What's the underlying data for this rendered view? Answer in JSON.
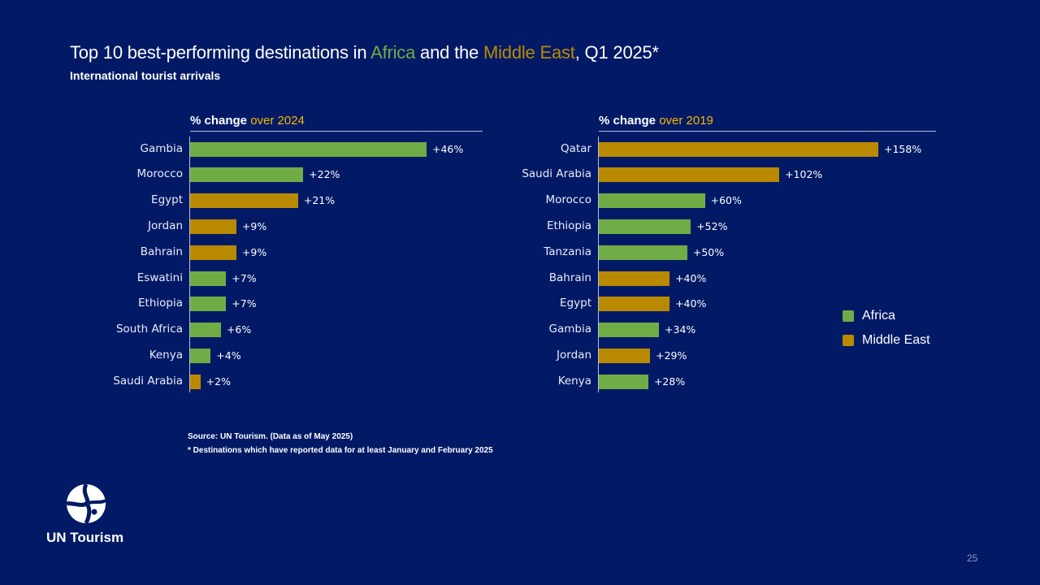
{
  "slide": {
    "title_part1": "Top 10 best-performing destinations in ",
    "title_africa": "Africa",
    "title_part2": " and the ",
    "title_middle_east": "Middle East",
    "title_part3": ", Q1 2025*",
    "subtitle": "International tourist arrivals",
    "source": "Source: UN Tourism. (Data as of May 2025)",
    "footnote": "* Destinations which have reported data for at least January and February 2025",
    "logo_text": "UN Tourism",
    "page_number": "25"
  },
  "colors": {
    "Africa": "#6fac46",
    "Middle East": "#b98a00",
    "highlight": "#f5b800",
    "background": "#021a66"
  },
  "legend": [
    {
      "label": "Africa",
      "region": "Africa"
    },
    {
      "label": "Middle East",
      "region": "Middle East"
    }
  ],
  "chart_data": [
    {
      "type": "bar",
      "orientation": "horizontal",
      "title_prefix": "% change ",
      "title_highlight": "over 2024",
      "categories": [
        "Gambia",
        "Morocco",
        "Egypt",
        "Jordan",
        "Bahrain",
        "Eswatini",
        "Ethiopia",
        "South Africa",
        "Kenya",
        "Saudi Arabia"
      ],
      "values": [
        46,
        22,
        21,
        9,
        9,
        7,
        7,
        6,
        4,
        2
      ],
      "labels": [
        "+46%",
        "+22%",
        "+21%",
        "+9%",
        "+9%",
        "+7%",
        "+7%",
        "+6%",
        "+4%",
        "+2%"
      ],
      "regions": [
        "Africa",
        "Africa",
        "Middle East",
        "Middle East",
        "Middle East",
        "Africa",
        "Africa",
        "Africa",
        "Africa",
        "Middle East"
      ],
      "xlim": [
        0,
        50
      ]
    },
    {
      "type": "bar",
      "orientation": "horizontal",
      "title_prefix": "% change ",
      "title_highlight": "over 2019",
      "categories": [
        "Qatar",
        "Saudi Arabia",
        "Morocco",
        "Ethiopia",
        "Tanzania",
        "Bahrain",
        "Egypt",
        "Gambia",
        "Jordan",
        "Kenya"
      ],
      "values": [
        158,
        102,
        60,
        52,
        50,
        40,
        40,
        34,
        29,
        28
      ],
      "labels": [
        "+158%",
        "+102%",
        "+60%",
        "+52%",
        "+50%",
        "+40%",
        "+40%",
        "+34%",
        "+29%",
        "+28%"
      ],
      "regions": [
        "Middle East",
        "Middle East",
        "Africa",
        "Africa",
        "Africa",
        "Middle East",
        "Middle East",
        "Africa",
        "Middle East",
        "Africa"
      ],
      "xlim": [
        0,
        165
      ]
    }
  ]
}
